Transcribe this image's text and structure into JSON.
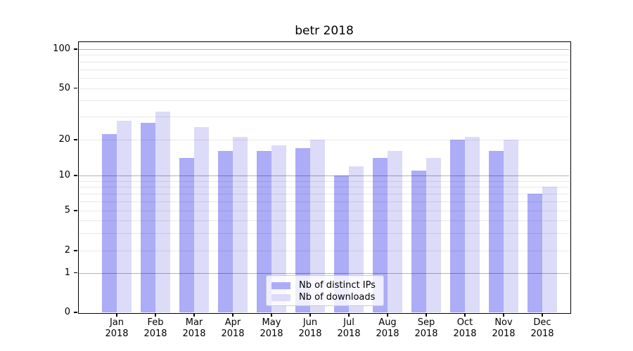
{
  "chart_data": {
    "type": "bar",
    "title": "betr 2018",
    "categories": [
      "Jan 2018",
      "Feb 2018",
      "Mar 2018",
      "Apr 2018",
      "May 2018",
      "Jun 2018",
      "Jul 2018",
      "Aug 2018",
      "Sep 2018",
      "Oct 2018",
      "Nov 2018",
      "Dec 2018"
    ],
    "x_tick_months": [
      "Jan",
      "Feb",
      "Mar",
      "Apr",
      "May",
      "Jun",
      "Jul",
      "Aug",
      "Sep",
      "Oct",
      "Nov",
      "Dec"
    ],
    "x_tick_year": "2018",
    "series": [
      {
        "name": "Nb of distinct IPs",
        "color": "#acacf7",
        "values": [
          22,
          27,
          14,
          16,
          16,
          17,
          10,
          14,
          11,
          20,
          16,
          7
        ]
      },
      {
        "name": "Nb of downloads",
        "color": "#dcdcf9",
        "values": [
          28,
          33,
          25,
          21,
          18,
          20,
          12,
          16,
          14,
          21,
          20,
          8
        ]
      }
    ],
    "yscale": "log-like (includes 0)",
    "ylim": [
      0,
      112
    ],
    "y_ticks": [
      0,
      1,
      2,
      5,
      10,
      20,
      50,
      100
    ],
    "y_decade_ticks": [
      1,
      10,
      100
    ],
    "y_minor_ticks": [
      3,
      4,
      6,
      7,
      8,
      9,
      30,
      40,
      60,
      70,
      80,
      90
    ],
    "grid": true,
    "legend_position": "lower center"
  },
  "style": {
    "ips_bar_color": "#acacf7",
    "downloads_bar_color": "#dcdcf9",
    "grid_decade_color": "#b3b3b3",
    "grid_minor_color": "#e8e8e8",
    "spine_color": "#000000",
    "legend_border_color": "#cccccc"
  }
}
